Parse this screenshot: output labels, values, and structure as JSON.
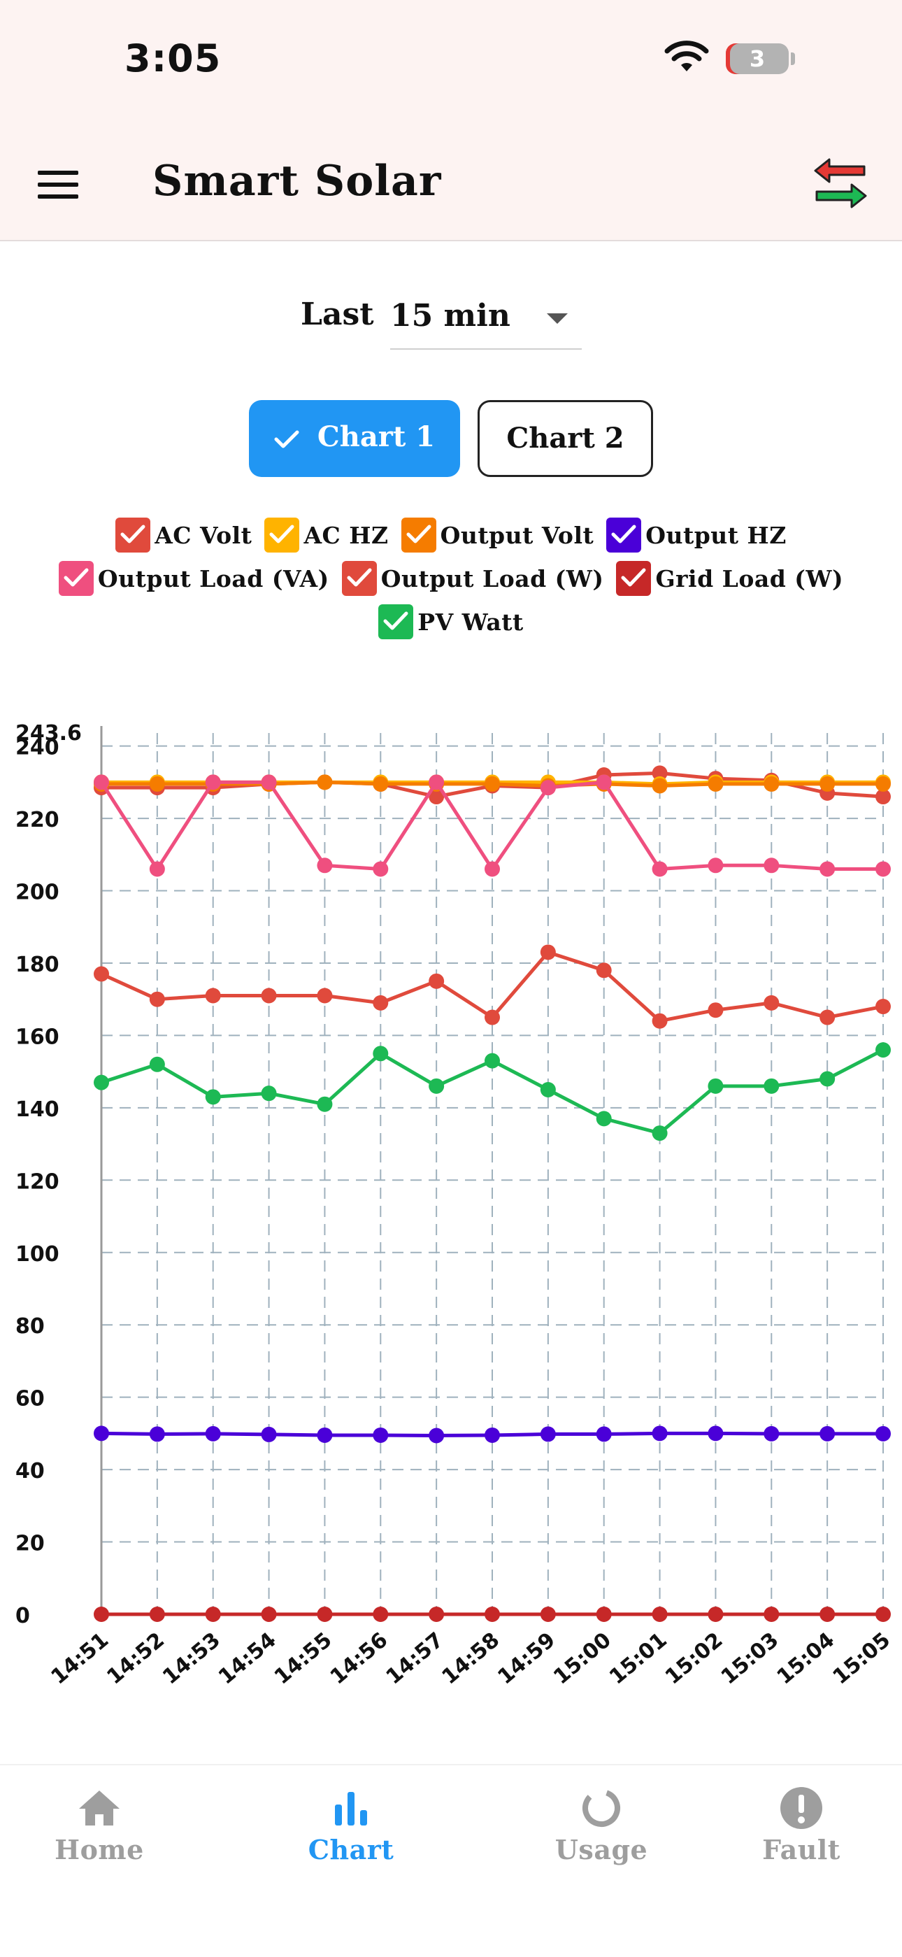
{
  "status_bar": {
    "time": "3:05",
    "battery": "3"
  },
  "app_bar": {
    "title": "Smart Solar"
  },
  "period": {
    "label": "Last",
    "value": "15 min"
  },
  "tabs": [
    {
      "label": "Chart 1",
      "active": true
    },
    {
      "label": "Chart 2",
      "active": false
    }
  ],
  "legend": [
    {
      "label": "AC Volt",
      "color": "#e04a3c"
    },
    {
      "label": "AC HZ",
      "color": "#ffb300"
    },
    {
      "label": "Output Volt",
      "color": "#f57c00"
    },
    {
      "label": "Output HZ",
      "color": "#4a00d8"
    },
    {
      "label": "Output Load (VA)",
      "color": "#ef4f7f"
    },
    {
      "label": "Output Load (W)",
      "color": "#e04a3c"
    },
    {
      "label": "Grid Load (W)",
      "color": "#c62828"
    },
    {
      "label": "PV Watt",
      "color": "#1db954"
    }
  ],
  "chart_data": {
    "type": "line",
    "x": [
      "14:51",
      "14:52",
      "14:53",
      "14:54",
      "14:55",
      "14:56",
      "14:57",
      "14:58",
      "14:59",
      "15:00",
      "15:01",
      "15:02",
      "15:03",
      "15:04",
      "15:05"
    ],
    "ylim": [
      0,
      243.6
    ],
    "yticks": [
      0,
      20,
      40,
      60,
      80,
      100,
      120,
      140,
      160,
      180,
      200,
      220,
      240
    ],
    "ymax_label": "243.6",
    "grid": true,
    "legend_position": "top",
    "series": [
      {
        "name": "AC Volt",
        "color": "#e04a3c",
        "values": [
          228.5,
          228.5,
          228.5,
          229.5,
          230,
          229.5,
          226,
          229,
          228.5,
          232,
          232.5,
          231,
          230.5,
          227,
          226
        ]
      },
      {
        "name": "AC HZ",
        "color": "#ffb300",
        "values": [
          230,
          230,
          230,
          230,
          230,
          230,
          230,
          230,
          230,
          230,
          229.5,
          230,
          230,
          230,
          230
        ]
      },
      {
        "name": "Output Volt",
        "color": "#f57c00",
        "values": [
          229.5,
          229.5,
          229.5,
          229.5,
          230,
          229.5,
          229.5,
          229.5,
          229,
          229.5,
          229,
          229.5,
          229.5,
          229.5,
          229.5
        ]
      },
      {
        "name": "Output HZ",
        "color": "#4a00d8",
        "values": [
          50,
          49.8,
          49.9,
          49.7,
          49.5,
          49.5,
          49.4,
          49.5,
          49.8,
          49.8,
          50,
          50,
          49.9,
          49.9,
          49.9
        ]
      },
      {
        "name": "Output Load (VA)",
        "color": "#ef4f7f",
        "values": [
          230,
          206,
          230,
          230,
          207,
          206,
          230,
          206,
          228.5,
          230,
          206,
          207,
          207,
          206,
          206
        ]
      },
      {
        "name": "Output Load (W)",
        "color": "#e04a3c",
        "values": [
          177,
          170,
          171,
          171,
          171,
          169,
          175,
          165,
          183,
          178,
          164,
          167,
          169,
          165,
          168
        ]
      },
      {
        "name": "Grid Load (W)",
        "color": "#c62828",
        "values": [
          0,
          0,
          0,
          0,
          0,
          0,
          0,
          0,
          0,
          0,
          0,
          0,
          0,
          0,
          0
        ]
      },
      {
        "name": "PV Watt",
        "color": "#1db954",
        "values": [
          147,
          152,
          143,
          144,
          141,
          155,
          146,
          153,
          145,
          137,
          133,
          146,
          146,
          148,
          156
        ]
      }
    ]
  },
  "bottom_nav": [
    {
      "label": "Home",
      "icon": "home-icon",
      "active": false
    },
    {
      "label": "Chart",
      "icon": "chart-icon",
      "active": true
    },
    {
      "label": "Usage",
      "icon": "usage-icon",
      "active": false
    },
    {
      "label": "Fault",
      "icon": "fault-icon",
      "active": false
    }
  ]
}
